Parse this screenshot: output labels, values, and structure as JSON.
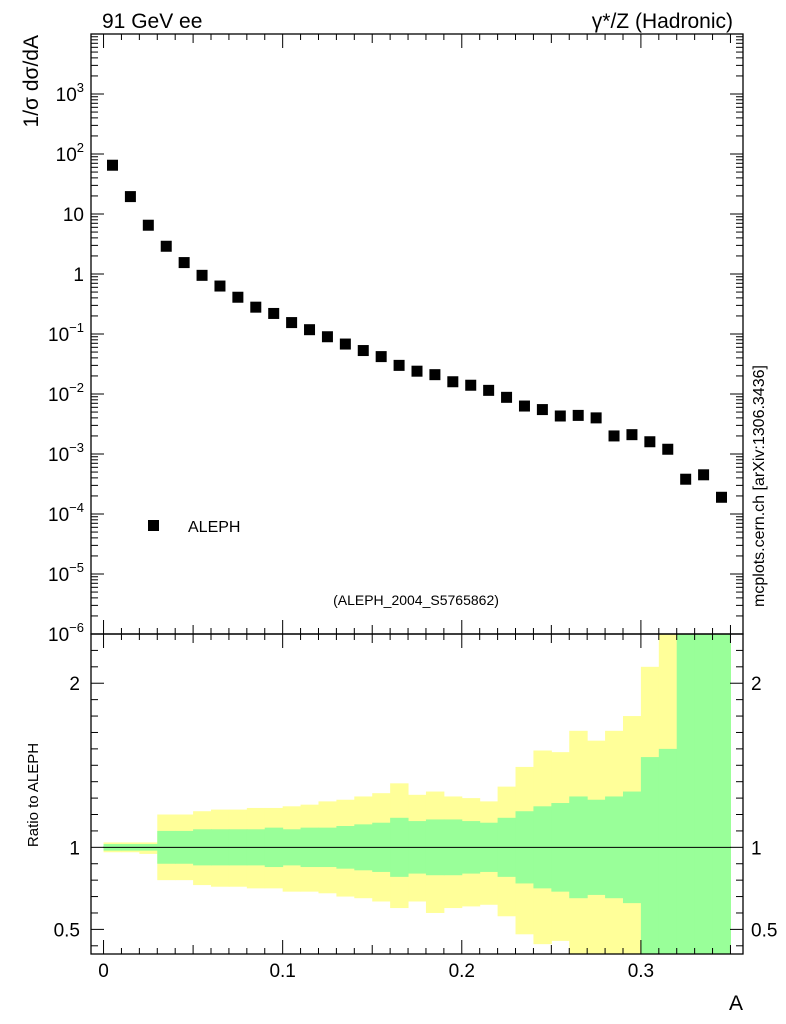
{
  "header": {
    "left": "91 GeV ee",
    "right": "γ*/Z (Hadronic)"
  },
  "side_label": "mcplots.cern.ch [arXiv:1306.3436]",
  "analysis_id": "(ALEPH_2004_S5765862)",
  "colors": {
    "marker": "#000000",
    "band_inner": "#99ff99",
    "band_outer": "#ffff99",
    "analysis_id": "#999999",
    "side_label": "#888888"
  },
  "chart_data": [
    {
      "type": "scatter",
      "ylabel": "1/σ  dσ/dA",
      "yscale": "log",
      "ylim": [
        1e-06,
        10000.0
      ],
      "xlim": [
        -0.007,
        0.357
      ],
      "ytick_values": [
        1e-06,
        1e-05,
        0.0001,
        0.001,
        0.01,
        0.1,
        1,
        10,
        100,
        1000
      ],
      "ytick_labels": [
        {
          "base": "10",
          "exp": "−6"
        },
        {
          "base": "10",
          "exp": "−5"
        },
        {
          "base": "10",
          "exp": "−4"
        },
        {
          "base": "10",
          "exp": "−3"
        },
        {
          "base": "10",
          "exp": "−2"
        },
        {
          "base": "10",
          "exp": "−1"
        },
        {
          "base": "1",
          "exp": ""
        },
        {
          "base": "10",
          "exp": ""
        },
        {
          "base": "10",
          "exp": "2"
        },
        {
          "base": "10",
          "exp": "3"
        }
      ],
      "legend": [
        {
          "label": "ALEPH",
          "marker": "square"
        }
      ],
      "series": [
        {
          "name": "ALEPH",
          "x": [
            0.005,
            0.015,
            0.025,
            0.035,
            0.045,
            0.055,
            0.065,
            0.075,
            0.085,
            0.095,
            0.105,
            0.115,
            0.125,
            0.135,
            0.145,
            0.155,
            0.165,
            0.175,
            0.185,
            0.195,
            0.205,
            0.215,
            0.225,
            0.235,
            0.245,
            0.255,
            0.265,
            0.275,
            0.285,
            0.295,
            0.305,
            0.315,
            0.325,
            0.335,
            0.345
          ],
          "y": [
            65,
            19.5,
            6.5,
            2.9,
            1.55,
            0.95,
            0.63,
            0.41,
            0.28,
            0.22,
            0.155,
            0.118,
            0.09,
            0.068,
            0.053,
            0.042,
            0.03,
            0.024,
            0.021,
            0.016,
            0.014,
            0.0115,
            0.0088,
            0.0063,
            0.0055,
            0.0043,
            0.0044,
            0.004,
            0.002,
            0.0021,
            0.0016,
            0.0012,
            0.00038,
            0.00045,
            0.00019
          ]
        }
      ]
    },
    {
      "type": "area",
      "ylabel": "Ratio to ALEPH",
      "xlabel": "A",
      "ylim": [
        0.35,
        2.3
      ],
      "xlim": [
        -0.007,
        0.357
      ],
      "ytick_values": [
        0.5,
        1,
        2
      ],
      "ytick_labels": [
        "0.5",
        "1",
        "2"
      ],
      "xtick_values": [
        0,
        0.1,
        0.2,
        0.3
      ],
      "xtick_labels": [
        "0",
        "0.1",
        "0.2",
        "0.3"
      ],
      "reference_line": 1,
      "bin_edges": [
        0,
        0.01,
        0.02,
        0.03,
        0.04,
        0.05,
        0.06,
        0.07,
        0.08,
        0.09,
        0.1,
        0.11,
        0.12,
        0.13,
        0.14,
        0.15,
        0.16,
        0.17,
        0.18,
        0.19,
        0.2,
        0.21,
        0.22,
        0.23,
        0.24,
        0.25,
        0.26,
        0.27,
        0.28,
        0.29,
        0.3,
        0.31,
        0.32,
        0.33,
        0.34,
        0.35
      ],
      "inner_upper": [
        1.02,
        1.02,
        1.02,
        1.1,
        1.1,
        1.11,
        1.11,
        1.11,
        1.11,
        1.12,
        1.11,
        1.12,
        1.12,
        1.13,
        1.14,
        1.15,
        1.18,
        1.16,
        1.17,
        1.17,
        1.16,
        1.15,
        1.18,
        1.22,
        1.25,
        1.27,
        1.31,
        1.29,
        1.31,
        1.34,
        1.55,
        1.6,
        2.5,
        2.5,
        2.5
      ],
      "inner_lower": [
        0.98,
        0.98,
        0.98,
        0.9,
        0.9,
        0.89,
        0.89,
        0.89,
        0.89,
        0.88,
        0.89,
        0.88,
        0.88,
        0.87,
        0.86,
        0.85,
        0.82,
        0.84,
        0.83,
        0.83,
        0.84,
        0.85,
        0.82,
        0.78,
        0.75,
        0.73,
        0.69,
        0.71,
        0.69,
        0.66,
        0.33,
        0.33,
        0.33,
        0.33,
        0.33
      ],
      "outer_upper": [
        1.03,
        1.03,
        1.03,
        1.2,
        1.2,
        1.22,
        1.23,
        1.23,
        1.24,
        1.24,
        1.25,
        1.26,
        1.28,
        1.29,
        1.31,
        1.33,
        1.39,
        1.32,
        1.34,
        1.31,
        1.3,
        1.28,
        1.37,
        1.49,
        1.59,
        1.58,
        1.71,
        1.65,
        1.71,
        1.8,
        2.1,
        2.3,
        2.5,
        2.5,
        2.5
      ],
      "outer_lower": [
        0.97,
        0.97,
        0.96,
        0.8,
        0.8,
        0.77,
        0.76,
        0.76,
        0.75,
        0.75,
        0.73,
        0.73,
        0.72,
        0.7,
        0.69,
        0.67,
        0.63,
        0.67,
        0.6,
        0.63,
        0.64,
        0.65,
        0.58,
        0.47,
        0.41,
        0.43,
        0.33,
        0.33,
        0.33,
        0.33,
        0.33,
        0.33,
        0.33,
        0.33,
        0.33
      ]
    }
  ]
}
